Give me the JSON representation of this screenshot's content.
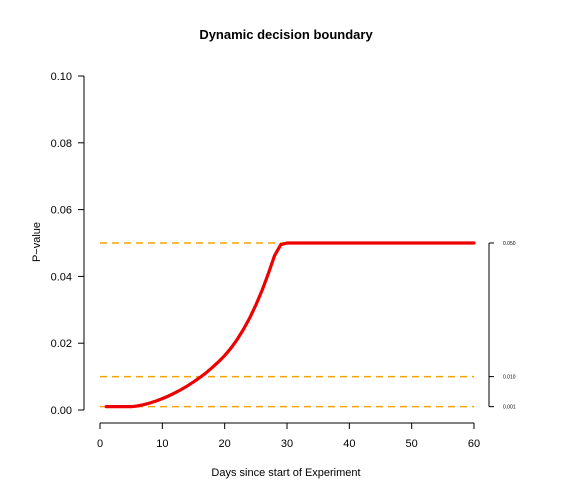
{
  "chart_data": {
    "type": "line",
    "title": "Dynamic decision boundary",
    "xlabel": "Days since start of Experiment",
    "ylabel": "P−value",
    "xlim": [
      0,
      60
    ],
    "ylim": [
      0,
      0.1
    ],
    "x_ticks": [
      {
        "value": 0,
        "label": "0"
      },
      {
        "value": 10,
        "label": "10"
      },
      {
        "value": 20,
        "label": "20"
      },
      {
        "value": 30,
        "label": "30"
      },
      {
        "value": 40,
        "label": "40"
      },
      {
        "value": 50,
        "label": "50"
      },
      {
        "value": 60,
        "label": "60"
      }
    ],
    "y_ticks": [
      {
        "value": 0.0,
        "label": "0.00"
      },
      {
        "value": 0.02,
        "label": "0.02"
      },
      {
        "value": 0.04,
        "label": "0.04"
      },
      {
        "value": 0.06,
        "label": "0.06"
      },
      {
        "value": 0.08,
        "label": "0.08"
      },
      {
        "value": 0.1,
        "label": "0.10"
      }
    ],
    "right_ticks": [
      {
        "value": 0.05,
        "label": "0.050"
      },
      {
        "value": 0.01,
        "label": "0.010"
      },
      {
        "value": 0.001,
        "label": "0.001"
      }
    ],
    "grid": false,
    "series": [
      {
        "color": "#ee0000",
        "x": [
          1,
          2,
          3,
          4,
          5,
          6,
          7,
          8,
          9,
          10,
          11,
          12,
          13,
          14,
          15,
          16,
          17,
          18,
          19,
          20,
          21,
          22,
          23,
          24,
          25,
          26,
          27,
          28,
          29,
          30,
          35,
          40,
          45,
          50,
          55,
          60
        ],
        "y": [
          0.001,
          0.001,
          0.001,
          0.001,
          0.001,
          0.0012,
          0.0016,
          0.0021,
          0.0027,
          0.0034,
          0.0042,
          0.0051,
          0.0061,
          0.0072,
          0.0084,
          0.0097,
          0.0111,
          0.0127,
          0.0144,
          0.0163,
          0.0185,
          0.0211,
          0.0241,
          0.0275,
          0.0314,
          0.0358,
          0.0408,
          0.0462,
          0.0495,
          0.05,
          0.05,
          0.05,
          0.05,
          0.05,
          0.05,
          0.05
        ]
      }
    ],
    "reference_lines": [
      {
        "y": 0.05,
        "color": "#f5a300",
        "style": "dashed"
      },
      {
        "y": 0.01,
        "color": "#f5a300",
        "style": "dashed"
      },
      {
        "y": 0.001,
        "color": "#f5a300",
        "style": "dashed"
      }
    ]
  }
}
